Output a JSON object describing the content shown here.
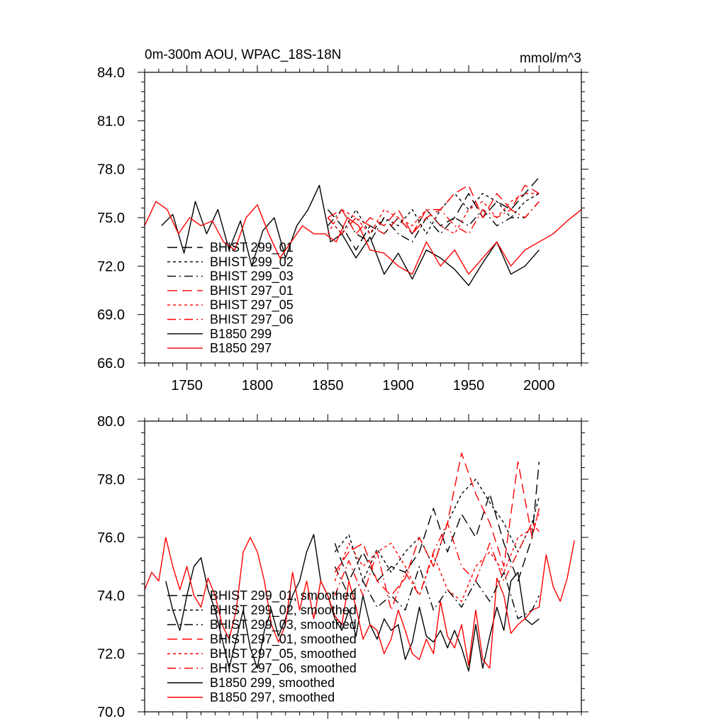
{
  "figure": {
    "top_title": "0m-300m AOU, WPAC_18S-18N",
    "units": "mmol/m^3"
  },
  "legend_top": [
    {
      "label": "BHIST 299_01",
      "color": "#000000",
      "dash": "long-dash"
    },
    {
      "label": "BHIST 299_02",
      "color": "#000000",
      "dash": "short-dash"
    },
    {
      "label": "BHIST 299_03",
      "color": "#000000",
      "dash": "dash-dot"
    },
    {
      "label": "BHIST 297_01",
      "color": "#ff0000",
      "dash": "long-dash"
    },
    {
      "label": "BHIST 297_05",
      "color": "#ff0000",
      "dash": "short-dash"
    },
    {
      "label": "BHIST 297_06",
      "color": "#ff0000",
      "dash": "dash-dot"
    },
    {
      "label": "B1850 299",
      "color": "#000000",
      "dash": "solid"
    },
    {
      "label": "B1850 297",
      "color": "#ff0000",
      "dash": "solid"
    }
  ],
  "legend_bottom": [
    {
      "label": "BHIST 299_01, smoothed",
      "color": "#000000",
      "dash": "long-dash"
    },
    {
      "label": "BHIST 299_02, smoothed",
      "color": "#000000",
      "dash": "short-dash"
    },
    {
      "label": "BHIST 299_03, smoothed",
      "color": "#000000",
      "dash": "dash-dot"
    },
    {
      "label": "BHIST 297_01, smoothed",
      "color": "#ff0000",
      "dash": "long-dash"
    },
    {
      "label": "BHIST 297_05, smoothed",
      "color": "#ff0000",
      "dash": "short-dash"
    },
    {
      "label": "BHIST 297_06, smoothed",
      "color": "#ff0000",
      "dash": "dash-dot"
    },
    {
      "label": "B1850 299, smoothed",
      "color": "#000000",
      "dash": "solid"
    },
    {
      "label": "B1850 297, smoothed",
      "color": "#ff0000",
      "dash": "solid"
    }
  ],
  "chart_data": [
    {
      "type": "line",
      "title": "0m-300m AOU, WPAC_18S-18N",
      "units": "mmol/m^3",
      "xlim": [
        1720,
        2030
      ],
      "ylim": [
        66.0,
        84.0
      ],
      "x_ticks": [
        1750,
        1800,
        1850,
        1900,
        1950,
        2000
      ],
      "x_tick_labels": [
        "1750",
        "1800",
        "1850",
        "1900",
        "1950",
        "2000"
      ],
      "y_ticks": [
        66.0,
        69.0,
        72.0,
        75.0,
        78.0,
        81.0,
        84.0
      ],
      "y_tick_labels": [
        "66.0",
        "69.0",
        "72.0",
        "75.0",
        "78.0",
        "81.0",
        "84.0"
      ],
      "legend_position": "lower-left",
      "series": [
        {
          "name": "B1850 299",
          "color": "#000000",
          "dash": "solid",
          "x": [
            1732,
            1740,
            1748,
            1756,
            1764,
            1772,
            1780,
            1788,
            1796,
            1804,
            1812,
            1820,
            1828,
            1836,
            1844,
            1852,
            1860,
            1870,
            1880,
            1890,
            1900,
            1910,
            1920,
            1930,
            1940,
            1950,
            1960,
            1970,
            1980,
            1990,
            2000
          ],
          "y": [
            74.5,
            75.2,
            72.8,
            76.0,
            74.0,
            75.5,
            73.0,
            74.8,
            72.0,
            74.2,
            75.0,
            72.5,
            74.5,
            75.5,
            77.0,
            73.5,
            74.0,
            72.5,
            73.8,
            71.5,
            72.8,
            71.2,
            73.0,
            72.5,
            71.8,
            70.8,
            72.2,
            73.5,
            71.5,
            72.0,
            73.0
          ]
        },
        {
          "name": "B1850 297",
          "color": "#ff0000",
          "dash": "solid",
          "x": [
            1720,
            1728,
            1736,
            1744,
            1752,
            1760,
            1768,
            1776,
            1784,
            1792,
            1800,
            1808,
            1816,
            1824,
            1832,
            1840,
            1848,
            1856,
            1864,
            1872,
            1880,
            1890,
            1900,
            1910,
            1920,
            1930,
            1940,
            1950,
            1960,
            1970,
            1980,
            1990,
            2000,
            2010,
            2020,
            2030
          ],
          "y": [
            74.5,
            76.0,
            75.5,
            74.0,
            75.0,
            74.5,
            74.8,
            73.5,
            73.0,
            75.0,
            75.8,
            74.0,
            72.5,
            73.5,
            74.5,
            74.0,
            74.0,
            73.5,
            75.0,
            74.5,
            73.0,
            72.8,
            72.0,
            71.5,
            73.5,
            72.0,
            73.0,
            71.5,
            72.5,
            73.5,
            72.0,
            73.0,
            73.5,
            74.0,
            74.8,
            75.5
          ]
        },
        {
          "name": "BHIST 299_01",
          "color": "#000000",
          "dash": "long-dash",
          "x": [
            1850,
            1860,
            1870,
            1880,
            1890,
            1900,
            1910,
            1920,
            1930,
            1940,
            1950,
            1960,
            1970,
            1980,
            1990,
            2000
          ],
          "y": [
            75.5,
            74.5,
            73.0,
            74.5,
            74.0,
            75.0,
            74.0,
            75.5,
            74.5,
            75.0,
            76.5,
            75.0,
            76.0,
            75.5,
            76.5,
            77.5
          ]
        },
        {
          "name": "BHIST 299_02",
          "color": "#000000",
          "dash": "short-dash",
          "x": [
            1850,
            1860,
            1870,
            1880,
            1890,
            1900,
            1910,
            1920,
            1930,
            1940,
            1950,
            1960,
            1970,
            1980,
            1990,
            2000
          ],
          "y": [
            75.0,
            74.0,
            75.5,
            74.0,
            75.0,
            74.5,
            75.5,
            74.0,
            75.5,
            76.5,
            75.5,
            76.5,
            76.0,
            75.0,
            76.0,
            76.5
          ]
        },
        {
          "name": "BHIST 299_03",
          "color": "#000000",
          "dash": "dash-dot",
          "x": [
            1850,
            1860,
            1870,
            1880,
            1890,
            1900,
            1910,
            1920,
            1930,
            1940,
            1950,
            1960,
            1970,
            1980,
            1990,
            2000
          ],
          "y": [
            74.5,
            75.5,
            74.0,
            73.5,
            75.0,
            74.0,
            73.5,
            75.0,
            74.0,
            75.0,
            74.5,
            75.5,
            74.5,
            75.0,
            75.0,
            76.0
          ]
        },
        {
          "name": "BHIST 297_01",
          "color": "#ff0000",
          "dash": "long-dash",
          "x": [
            1850,
            1860,
            1870,
            1880,
            1890,
            1900,
            1910,
            1920,
            1930,
            1940,
            1950,
            1960,
            1970,
            1980,
            1990,
            2000
          ],
          "y": [
            75.0,
            75.5,
            74.0,
            75.0,
            74.5,
            75.5,
            74.0,
            75.0,
            75.5,
            76.5,
            77.0,
            75.0,
            76.5,
            75.5,
            77.0,
            76.5
          ]
        },
        {
          "name": "BHIST 297_05",
          "color": "#ff0000",
          "dash": "short-dash",
          "x": [
            1850,
            1860,
            1870,
            1880,
            1890,
            1900,
            1910,
            1920,
            1930,
            1940,
            1950,
            1960,
            1970,
            1980,
            1990,
            2000
          ],
          "y": [
            74.0,
            75.5,
            75.0,
            74.0,
            75.5,
            75.0,
            74.5,
            75.5,
            74.5,
            74.0,
            75.5,
            76.0,
            75.0,
            76.0,
            76.5,
            76.5
          ]
        },
        {
          "name": "BHIST 297_06",
          "color": "#ff0000",
          "dash": "dash-dot",
          "x": [
            1850,
            1860,
            1870,
            1880,
            1890,
            1900,
            1910,
            1920,
            1930,
            1940,
            1950,
            1960,
            1970,
            1980,
            1990,
            2000
          ],
          "y": [
            75.0,
            74.0,
            75.0,
            74.5,
            74.0,
            75.0,
            74.0,
            75.5,
            75.5,
            74.5,
            74.0,
            75.5,
            75.0,
            75.5,
            75.0,
            76.0
          ]
        }
      ]
    },
    {
      "type": "line",
      "title": "",
      "xlim": [
        1720,
        2030
      ],
      "ylim": [
        70.0,
        80.0
      ],
      "x_ticks": [
        1750,
        1800,
        1850,
        1900,
        1950,
        2000
      ],
      "x_tick_labels": [
        "",
        "",
        "",
        "",
        "",
        ""
      ],
      "y_ticks": [
        70.0,
        72.0,
        74.0,
        76.0,
        78.0,
        80.0
      ],
      "y_tick_labels": [
        "70.0",
        "72.0",
        "74.0",
        "76.0",
        "78.0",
        "80.0"
      ],
      "legend_position": "lower-left",
      "series": [
        {
          "name": "B1850 299, smoothed",
          "color": "#000000",
          "dash": "solid",
          "x": [
            1735,
            1740,
            1745,
            1750,
            1755,
            1760,
            1765,
            1770,
            1775,
            1780,
            1785,
            1790,
            1795,
            1800,
            1805,
            1810,
            1815,
            1820,
            1825,
            1830,
            1835,
            1840,
            1845,
            1850,
            1855,
            1860,
            1865,
            1870,
            1875,
            1880,
            1885,
            1890,
            1895,
            1900,
            1905,
            1910,
            1915,
            1920,
            1925,
            1930,
            1935,
            1940,
            1945,
            1950,
            1955,
            1960,
            1965,
            1970,
            1975,
            1980,
            1985,
            1990,
            1995,
            2000
          ],
          "y": [
            74.5,
            73.5,
            72.8,
            74.0,
            75.0,
            75.3,
            74.2,
            73.5,
            72.5,
            71.5,
            72.5,
            73.5,
            72.2,
            71.5,
            72.8,
            73.5,
            72.6,
            73.2,
            74.0,
            74.5,
            75.5,
            76.1,
            74.5,
            74.0,
            73.2,
            72.8,
            73.5,
            72.6,
            74.0,
            73.0,
            72.5,
            73.2,
            72.8,
            73.0,
            71.8,
            72.4,
            73.6,
            72.6,
            72.4,
            72.8,
            72.2,
            72.8,
            72.2,
            71.4,
            73.0,
            71.5,
            72.6,
            73.6,
            72.8,
            74.5,
            74.8,
            73.2,
            73.0,
            73.2
          ]
        },
        {
          "name": "B1850 297, smoothed",
          "color": "#ff0000",
          "dash": "solid",
          "x": [
            1720,
            1725,
            1730,
            1735,
            1740,
            1745,
            1750,
            1755,
            1760,
            1765,
            1770,
            1775,
            1780,
            1785,
            1790,
            1795,
            1800,
            1805,
            1810,
            1815,
            1820,
            1825,
            1830,
            1835,
            1840,
            1845,
            1850,
            1855,
            1860,
            1865,
            1870,
            1875,
            1880,
            1885,
            1890,
            1895,
            1900,
            1905,
            1910,
            1915,
            1920,
            1925,
            1930,
            1935,
            1940,
            1945,
            1950,
            1955,
            1960,
            1965,
            1970,
            1975,
            1980,
            1985,
            1990,
            1995,
            2000,
            2005,
            2010,
            2015,
            2020,
            2025
          ],
          "y": [
            74.2,
            74.8,
            74.5,
            76.0,
            75.0,
            74.2,
            75.0,
            74.0,
            73.6,
            74.6,
            74.0,
            73.0,
            72.5,
            73.5,
            75.5,
            76.0,
            75.5,
            74.5,
            73.0,
            72.4,
            73.0,
            74.8,
            73.5,
            74.5,
            73.2,
            74.5,
            74.0,
            73.3,
            73.0,
            74.5,
            73.6,
            72.5,
            73.0,
            72.8,
            72.0,
            72.5,
            73.5,
            72.8,
            72.0,
            71.8,
            72.5,
            72.0,
            73.8,
            72.6,
            72.2,
            73.0,
            71.6,
            73.5,
            71.8,
            71.5,
            74.6,
            74.0,
            72.7,
            73.0,
            73.2,
            73.5,
            73.6,
            75.4,
            74.3,
            73.8,
            74.6,
            75.9
          ]
        },
        {
          "name": "BHIST 299_01, smoothed",
          "color": "#000000",
          "dash": "long-dash",
          "x": [
            1855,
            1865,
            1875,
            1885,
            1895,
            1905,
            1915,
            1925,
            1935,
            1945,
            1955,
            1965,
            1975,
            1985,
            1995,
            2000
          ],
          "y": [
            75.8,
            74.5,
            75.5,
            74.5,
            75.0,
            74.8,
            75.5,
            77.0,
            75.5,
            76.8,
            76.0,
            77.5,
            75.8,
            74.5,
            76.0,
            78.6
          ]
        },
        {
          "name": "BHIST 299_02, smoothed",
          "color": "#000000",
          "dash": "short-dash",
          "x": [
            1855,
            1865,
            1875,
            1885,
            1895,
            1905,
            1915,
            1925,
            1935,
            1945,
            1955,
            1965,
            1975,
            1985,
            1995,
            2000
          ],
          "y": [
            75.5,
            76.1,
            74.5,
            75.6,
            74.8,
            75.5,
            76.0,
            75.0,
            76.5,
            77.5,
            78.0,
            77.2,
            76.5,
            75.5,
            76.5,
            77.4
          ]
        },
        {
          "name": "BHIST 299_03, smoothed",
          "color": "#000000",
          "dash": "dash-dot",
          "x": [
            1855,
            1865,
            1875,
            1885,
            1895,
            1905,
            1915,
            1925,
            1935,
            1945,
            1955,
            1965,
            1975,
            1985,
            1995,
            2000
          ],
          "y": [
            75.0,
            74.0,
            74.5,
            73.6,
            74.0,
            73.5,
            75.0,
            73.5,
            74.2,
            73.6,
            74.5,
            73.8,
            74.8,
            73.2,
            73.5,
            74.0
          ]
        },
        {
          "name": "BHIST 297_01, smoothed",
          "color": "#ff0000",
          "dash": "long-dash",
          "x": [
            1855,
            1865,
            1875,
            1885,
            1895,
            1905,
            1915,
            1925,
            1935,
            1945,
            1955,
            1965,
            1975,
            1985,
            1995,
            2000
          ],
          "y": [
            74.8,
            75.5,
            75.8,
            74.5,
            74.0,
            74.6,
            76.0,
            75.0,
            76.5,
            78.9,
            77.5,
            76.5,
            75.0,
            78.6,
            76.0,
            77.0
          ]
        },
        {
          "name": "BHIST 297_05, smoothed",
          "color": "#ff0000",
          "dash": "short-dash",
          "x": [
            1855,
            1865,
            1875,
            1885,
            1895,
            1905,
            1915,
            1925,
            1935,
            1945,
            1955,
            1965,
            1975,
            1985,
            1995,
            2000
          ],
          "y": [
            74.5,
            75.8,
            75.0,
            75.5,
            75.8,
            75.0,
            74.0,
            75.4,
            74.2,
            73.8,
            75.0,
            75.5,
            74.8,
            76.0,
            76.3,
            76.8
          ]
        },
        {
          "name": "BHIST 297_06, smoothed",
          "color": "#ff0000",
          "dash": "dash-dot",
          "x": [
            1855,
            1865,
            1875,
            1885,
            1895,
            1905,
            1915,
            1925,
            1935,
            1945,
            1955,
            1965,
            1975,
            1985,
            1995,
            2000
          ],
          "y": [
            74.0,
            75.2,
            74.0,
            75.5,
            73.5,
            74.8,
            74.0,
            75.5,
            76.5,
            75.0,
            74.5,
            75.8,
            74.5,
            75.5,
            76.5,
            76.2
          ]
        }
      ]
    }
  ]
}
